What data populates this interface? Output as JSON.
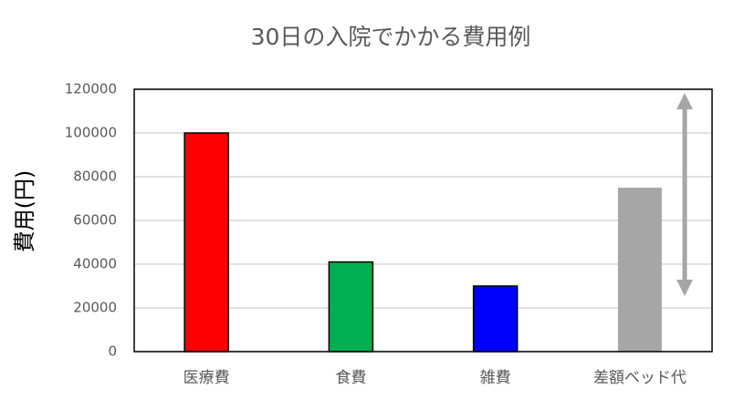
{
  "chart_data": {
    "type": "bar",
    "title": "30日の入院でかかる費用例",
    "ylabel": "費用(円)",
    "categories": [
      "医療費",
      "食費",
      "雑費",
      "差額ベッド代"
    ],
    "values": [
      100000,
      41000,
      30000,
      75000
    ],
    "colors": [
      "#ff0000",
      "#00b050",
      "#0000ff",
      "#a6a6a6"
    ],
    "edgecolors": [
      "#000000",
      "#000000",
      "#000000",
      "none"
    ],
    "ylim": [
      0,
      120000
    ],
    "yticks": [
      0,
      20000,
      40000,
      60000,
      80000,
      100000,
      120000
    ],
    "grid": true
  }
}
